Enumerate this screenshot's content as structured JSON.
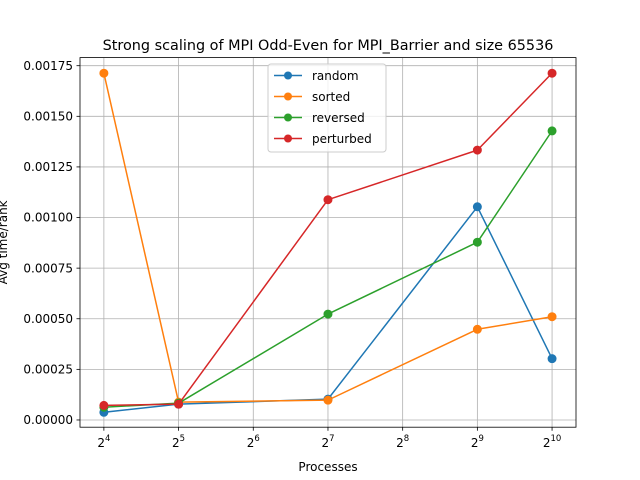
{
  "chart_data": {
    "type": "line",
    "title": "Strong scaling of MPI Odd-Even for MPI_Barrier and size 65536",
    "xlabel": "Processes",
    "ylabel": "Avg time/rank",
    "x_scale": "log2",
    "x": [
      16,
      32,
      128,
      512,
      1024
    ],
    "xticks": [
      {
        "value": 16,
        "base": "2",
        "exp": "4"
      },
      {
        "value": 32,
        "base": "2",
        "exp": "5"
      },
      {
        "value": 64,
        "base": "2",
        "exp": "6"
      },
      {
        "value": 128,
        "base": "2",
        "exp": "7"
      },
      {
        "value": 256,
        "base": "2",
        "exp": "8"
      },
      {
        "value": 512,
        "base": "2",
        "exp": "9"
      },
      {
        "value": 1024,
        "base": "2",
        "exp": "10"
      }
    ],
    "yticks": [
      {
        "value": 0.0,
        "label": "0.00000"
      },
      {
        "value": 0.00025,
        "label": "0.00025"
      },
      {
        "value": 0.0005,
        "label": "0.00050"
      },
      {
        "value": 0.00075,
        "label": "0.00075"
      },
      {
        "value": 0.001,
        "label": "0.00100"
      },
      {
        "value": 0.00125,
        "label": "0.00125"
      },
      {
        "value": 0.0015,
        "label": "0.00150"
      },
      {
        "value": 0.00175,
        "label": "0.00175"
      }
    ],
    "ylim": [
      -3.57e-05,
      0.00179
    ],
    "grid": true,
    "legend_position": "top-center",
    "series": [
      {
        "name": "random",
        "color": "#1f77b4",
        "values": [
          3.8e-05,
          7.8e-05,
          0.000103,
          0.001053,
          0.000303
        ]
      },
      {
        "name": "sorted",
        "color": "#ff7f0e",
        "values": [
          0.001713,
          8.8e-05,
          9.8e-05,
          0.000448,
          0.00051
        ]
      },
      {
        "name": "reversed",
        "color": "#2ca02c",
        "values": [
          6.3e-05,
          8.3e-05,
          0.000523,
          0.000878,
          0.001428
        ]
      },
      {
        "name": "perturbed",
        "color": "#d62728",
        "values": [
          7.2e-05,
          7.8e-05,
          0.001088,
          0.001333,
          0.001713
        ]
      }
    ]
  }
}
